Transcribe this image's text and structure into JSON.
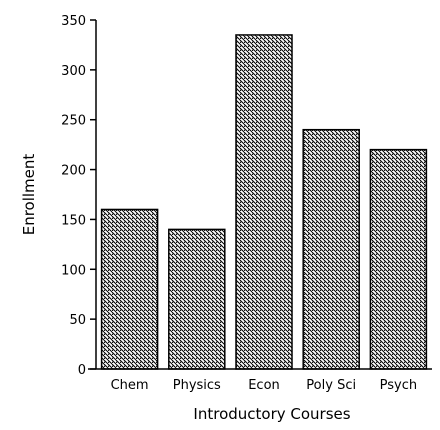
{
  "chart_data": {
    "type": "bar",
    "title": "",
    "xlabel": "Introductory Courses",
    "ylabel": "Enrollment",
    "categories": [
      "Chem",
      "Physics",
      "Econ",
      "Poly Sci",
      "Psych"
    ],
    "values": [
      160,
      140,
      335,
      240,
      220
    ],
    "ylim": [
      0,
      350
    ],
    "yticks": [
      0,
      50,
      100,
      150,
      200,
      250,
      300,
      350
    ],
    "grid": false,
    "legend": "none",
    "bar_fill": "diagonal-hatch",
    "colors": {
      "bar_stroke": "#000000",
      "hatch": "#000000",
      "background": "#ffffff"
    }
  }
}
